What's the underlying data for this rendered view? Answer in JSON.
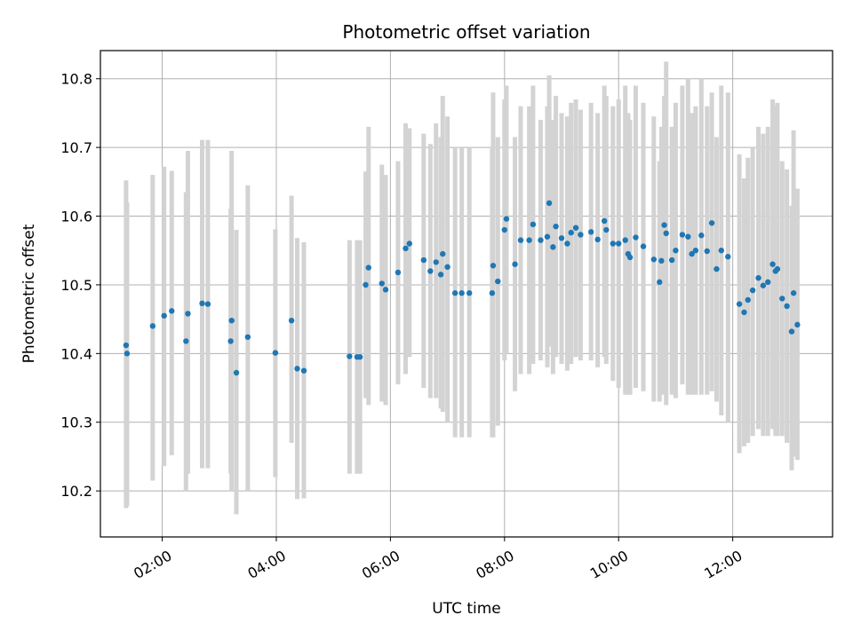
{
  "chart_data": {
    "type": "scatter",
    "title": "Photometric offset variation",
    "xlabel": "UTC time",
    "ylabel": "Photometric offset",
    "x_unit": "UTC hours",
    "xlim": [
      "00:55",
      "13:45"
    ],
    "ylim": [
      10.133,
      10.841
    ],
    "x_ticks": [
      "02:00",
      "04:00",
      "06:00",
      "08:00",
      "10:00",
      "12:00"
    ],
    "y_ticks": [
      "10.2",
      "10.3",
      "10.4",
      "10.5",
      "10.6",
      "10.7",
      "10.8"
    ],
    "grid": true,
    "legend": "none",
    "marker_color": "#1f77b4",
    "errorbar_color": "#d3d3d3",
    "series": [
      {
        "x": [
          "01:22",
          "01:23",
          "01:50",
          "02:02",
          "02:10",
          "02:25",
          "02:27",
          "02:42",
          "02:48",
          "03:12",
          "03:13",
          "03:18",
          "03:30",
          "03:59",
          "04:16",
          "04:22",
          "04:29",
          "05:17",
          "05:25",
          "05:28",
          "05:34",
          "05:37",
          "05:51",
          "05:55",
          "06:08",
          "06:16",
          "06:20",
          "06:35",
          "06:42",
          "06:48",
          "06:53",
          "06:55",
          "07:00",
          "07:08",
          "07:15",
          "07:23",
          "07:47",
          "07:48",
          "07:53",
          "08:00",
          "08:02",
          "08:11",
          "08:17",
          "08:26",
          "08:30",
          "08:38",
          "08:45",
          "08:47",
          "08:51",
          "08:54",
          "09:00",
          "09:06",
          "09:10",
          "09:15",
          "09:20",
          "09:31",
          "09:38",
          "09:45",
          "09:47",
          "09:54",
          "10:00",
          "10:07",
          "10:10",
          "10:12",
          "10:18",
          "10:26",
          "10:37",
          "10:43",
          "10:45",
          "10:48",
          "10:50",
          "10:56",
          "11:00",
          "11:07",
          "11:13",
          "11:17",
          "11:21",
          "11:27",
          "11:33",
          "11:38",
          "11:43",
          "11:48",
          "11:55",
          "12:07",
          "12:12",
          "12:16",
          "12:21",
          "12:27",
          "12:32",
          "12:37",
          "12:42",
          "12:45",
          "12:47",
          "12:52",
          "12:57",
          "13:02",
          "13:04",
          "13:08"
        ],
        "y": [
          10.412,
          10.4,
          10.44,
          10.455,
          10.462,
          10.418,
          10.458,
          10.473,
          10.472,
          10.418,
          10.448,
          10.372,
          10.424,
          10.401,
          10.448,
          10.378,
          10.375,
          10.396,
          10.395,
          10.395,
          10.5,
          10.525,
          10.502,
          10.493,
          10.518,
          10.553,
          10.56,
          10.536,
          10.52,
          10.533,
          10.515,
          10.545,
          10.526,
          10.488,
          10.488,
          10.488,
          10.488,
          10.528,
          10.505,
          10.58,
          10.596,
          10.53,
          10.565,
          10.565,
          10.588,
          10.565,
          10.57,
          10.619,
          10.555,
          10.585,
          10.568,
          10.56,
          10.576,
          10.583,
          10.573,
          10.577,
          10.566,
          10.593,
          10.58,
          10.56,
          10.56,
          10.565,
          10.545,
          10.54,
          10.569,
          10.556,
          10.537,
          10.504,
          10.535,
          10.587,
          10.575,
          10.536,
          10.55,
          10.573,
          10.57,
          10.545,
          10.55,
          10.572,
          10.549,
          10.59,
          10.523,
          10.55,
          10.541,
          10.472,
          10.46,
          10.478,
          10.492,
          10.51,
          10.499,
          10.504,
          10.53,
          10.52,
          10.523,
          10.48,
          10.469,
          10.432,
          10.488,
          10.442
        ],
        "err_low": [
          10.175,
          10.178,
          10.215,
          10.236,
          10.252,
          10.2,
          10.225,
          10.233,
          10.233,
          10.225,
          10.2,
          10.166,
          10.2,
          10.22,
          10.27,
          10.188,
          10.189,
          10.225,
          10.225,
          10.225,
          10.335,
          10.325,
          10.33,
          10.325,
          10.355,
          10.37,
          10.395,
          10.35,
          10.335,
          10.335,
          10.32,
          10.315,
          10.3,
          10.278,
          10.278,
          10.278,
          10.278,
          10.278,
          10.295,
          10.39,
          10.4,
          10.345,
          10.37,
          10.37,
          10.385,
          10.39,
          10.38,
          10.41,
          10.37,
          10.395,
          10.385,
          10.375,
          10.385,
          10.395,
          10.39,
          10.39,
          10.38,
          10.395,
          10.385,
          10.36,
          10.35,
          10.34,
          10.34,
          10.34,
          10.35,
          10.345,
          10.33,
          10.33,
          10.34,
          10.34,
          10.325,
          10.34,
          10.335,
          10.355,
          10.34,
          10.34,
          10.34,
          10.34,
          10.34,
          10.345,
          10.33,
          10.31,
          10.3,
          10.255,
          10.265,
          10.27,
          10.28,
          10.29,
          10.28,
          10.28,
          10.29,
          10.28,
          10.28,
          10.28,
          10.27,
          10.23,
          10.25,
          10.245
        ],
        "err_high": [
          10.652,
          10.62,
          10.66,
          10.672,
          10.666,
          10.635,
          10.695,
          10.711,
          10.711,
          10.611,
          10.695,
          10.58,
          10.645,
          10.581,
          10.63,
          10.568,
          10.562,
          10.565,
          10.565,
          10.565,
          10.665,
          10.73,
          10.675,
          10.66,
          10.68,
          10.735,
          10.728,
          10.72,
          10.705,
          10.735,
          10.715,
          10.775,
          10.745,
          10.7,
          10.7,
          10.7,
          10.7,
          10.78,
          10.715,
          10.77,
          10.79,
          10.715,
          10.76,
          10.76,
          10.79,
          10.74,
          10.76,
          10.805,
          10.74,
          10.775,
          10.75,
          10.745,
          10.765,
          10.77,
          10.755,
          10.765,
          10.75,
          10.79,
          10.775,
          10.76,
          10.77,
          10.79,
          10.75,
          10.74,
          10.79,
          10.765,
          10.745,
          10.68,
          10.73,
          10.775,
          10.825,
          10.73,
          10.765,
          10.79,
          10.8,
          10.75,
          10.76,
          10.8,
          10.76,
          10.78,
          10.715,
          10.79,
          10.78,
          10.69,
          10.655,
          10.685,
          10.7,
          10.73,
          10.72,
          10.73,
          10.77,
          10.76,
          10.765,
          10.68,
          10.668,
          10.615,
          10.725,
          10.64
        ]
      }
    ]
  }
}
